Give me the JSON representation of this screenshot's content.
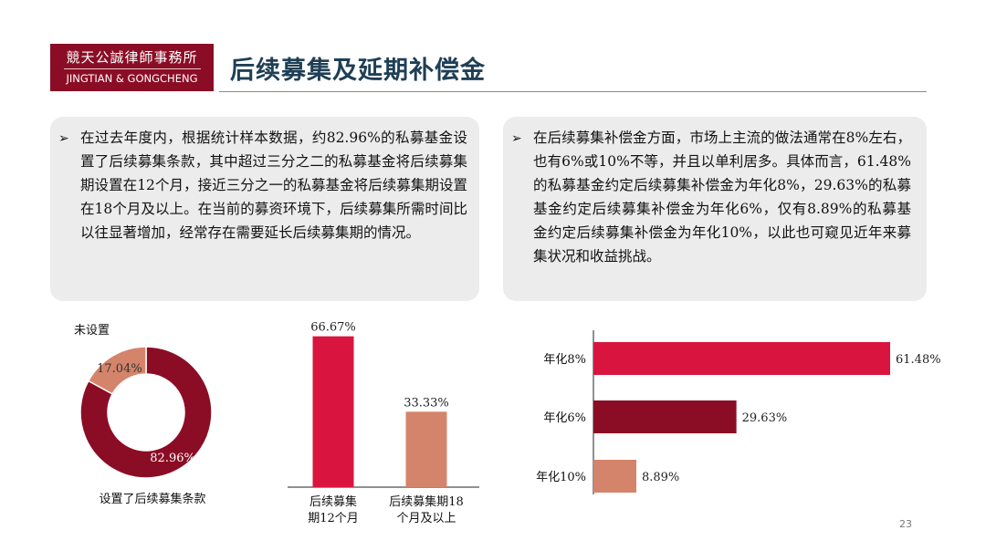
{
  "logo": {
    "cn": "競天公誠律師事務所",
    "en": "JINGTIAN & GONGCHENG"
  },
  "slide": {
    "title": "后续募集及延期补偿金",
    "page_number": "23"
  },
  "text_boxes": {
    "left": {
      "bullet": "➢",
      "text": "在过去年度内，根据统计样本数据，约82.96%的私募基金设置了后续募集条款，其中超过三分之二的私募基金将后续募集期设置在12个月，接近三分之一的私募基金将后续募集期设置在18个月及以上。在当前的募资环境下，后续募集所需时间比以往显著增加，经常存在需要延长后续募集期的情况。"
    },
    "right": {
      "bullet": "➢",
      "text": "在后续募集补偿金方面，市场上主流的做法通常在8%左右，也有6%或10%不等，并且以单利居多。具体而言，61.48%的私募基金约定后续募集补偿金为年化8%，29.63%的私募基金约定后续募集补偿金为年化6%，仅有8.89%的私募基金约定后续募集补偿金为年化10%，以此也可窥见近年来募集状况和收益挑战。"
    }
  },
  "colors": {
    "brand": "#8b0d25",
    "crimson": "#d9153f",
    "salmon": "#d4846a",
    "title": "#1f3f55",
    "box_bg": "#ececec"
  },
  "chart_data": [
    {
      "type": "pie",
      "variant": "donut",
      "slices": [
        {
          "label": "设置了后续募集条款",
          "value": 82.96,
          "value_label": "82.96%",
          "color": "#8b0d25"
        },
        {
          "label": "未设置",
          "value": 17.04,
          "value_label": "17.04%",
          "color": "#d4846a"
        }
      ]
    },
    {
      "type": "bar",
      "orientation": "vertical",
      "categories": [
        "后续募集期12个月",
        "后续募集期18个月及以上"
      ],
      "category_label_lines": [
        [
          "后续募集",
          "期12个月"
        ],
        [
          "后续募集期18",
          "个月及以上"
        ]
      ],
      "values": [
        66.67,
        33.33
      ],
      "value_labels": [
        "66.67%",
        "33.33%"
      ],
      "colors": [
        "#d9153f",
        "#d4846a"
      ],
      "ylim": [
        0,
        100
      ]
    },
    {
      "type": "bar",
      "orientation": "horizontal",
      "categories": [
        "年化8%",
        "年化6%",
        "年化10%"
      ],
      "values": [
        61.48,
        29.63,
        8.89
      ],
      "value_labels": [
        "61.48%",
        "29.63%",
        "8.89%"
      ],
      "colors": [
        "#d9153f",
        "#8b0d25",
        "#d4846a"
      ],
      "xlim": [
        0,
        61.48
      ]
    }
  ]
}
